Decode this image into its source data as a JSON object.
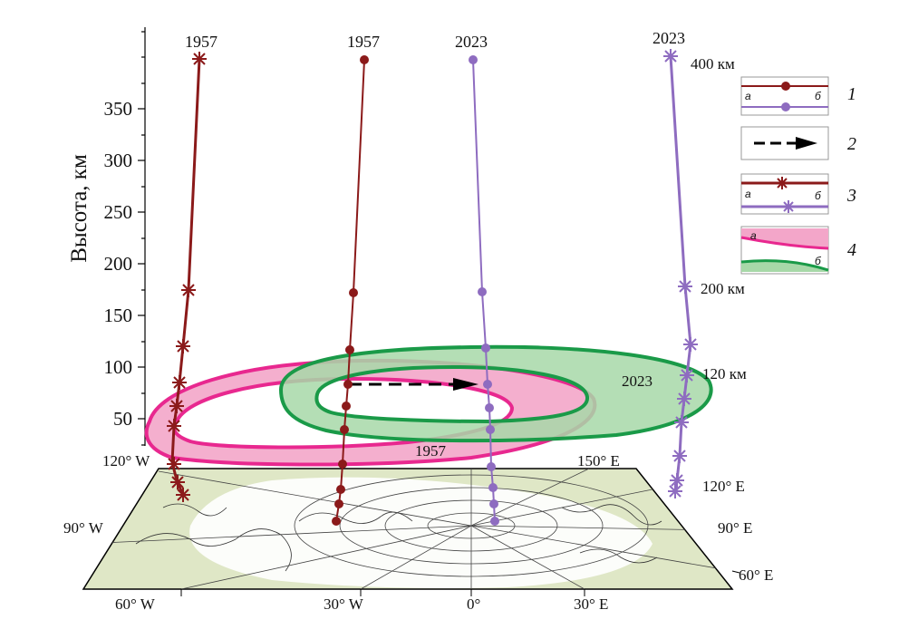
{
  "y_axis": {
    "label": "Высота, км",
    "ticks": [
      "50",
      "100",
      "150",
      "200",
      "250",
      "300",
      "350"
    ]
  },
  "column_labels": [
    "1957",
    "1957",
    "2023",
    "2023"
  ],
  "altitude_labels": {
    "km400": "400 км",
    "km200": "200 км",
    "km120": "120 км"
  },
  "oval_labels": {
    "green": "2023",
    "pink": "1957"
  },
  "map_labels": {
    "lon_120w": "120° W",
    "lon_150e": "150° E",
    "lon_120e": "120° E",
    "lon_90w": "90° W",
    "lon_90e": "90° E",
    "lon_60e": "60° E",
    "lon_60w": "60° W",
    "lon_30w": "30° W",
    "lon_0": "0°",
    "lon_30e": "30° E"
  },
  "legend": [
    {
      "number": "1",
      "sub_a": "а",
      "sub_b": "б"
    },
    {
      "number": "2"
    },
    {
      "number": "3",
      "sub_a": "а",
      "sub_b": "б"
    },
    {
      "number": "4",
      "sub_a": "а",
      "sub_b": "б"
    }
  ],
  "colors": {
    "dark_red": "#8b1a1a",
    "purple": "#8e6cc0",
    "pink": "#e8288f",
    "pink_fill": "#f3a6c9",
    "green": "#1a9a48",
    "green_fill": "#a7d8a8",
    "map_land": "#dfe7c6"
  }
}
